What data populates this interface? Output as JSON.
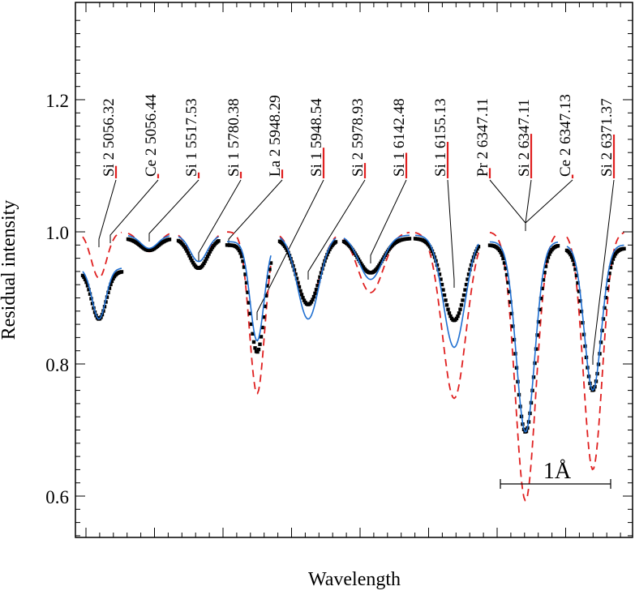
{
  "chart_data": {
    "type": "line",
    "title": "",
    "xlabel": "Wavelength",
    "ylabel": "Residual intensity",
    "ylim": [
      0.53,
      1.35
    ],
    "yticks": [
      "0.6",
      "0.8",
      "1.0",
      "1.2"
    ],
    "grid": false,
    "scale_bar_label": "1Å",
    "legend": [],
    "colors": {
      "observed": "#000000",
      "model_solid": "#1f6fd1",
      "model_dashed": "#e02020",
      "marker": "#e02020"
    },
    "line_ids": [
      {
        "ion": "Si 2",
        "wavelength": "5056.32",
        "strength": 0.17
      },
      {
        "ion": "Ce 2",
        "wavelength": "5056.44",
        "strength": 0.06
      },
      {
        "ion": "Si 1",
        "wavelength": "5517.53",
        "strength": 0.08
      },
      {
        "ion": "Si 1",
        "wavelength": "5780.38",
        "strength": 0.09
      },
      {
        "ion": "La 2",
        "wavelength": "5948.29",
        "strength": 0.12
      },
      {
        "ion": "Si 1",
        "wavelength": "5948.54",
        "strength": 0.42
      },
      {
        "ion": "Si 2",
        "wavelength": "5978.93",
        "strength": 0.21
      },
      {
        "ion": "Si 1",
        "wavelength": "6142.48",
        "strength": 0.35
      },
      {
        "ion": "Si 1",
        "wavelength": "6155.13",
        "strength": 0.5
      },
      {
        "ion": "Pr 2",
        "wavelength": "6347.11",
        "strength": 0.14
      },
      {
        "ion": "Si 2",
        "wavelength": "6347.11",
        "strength": 0.61
      },
      {
        "ion": "Ce 2",
        "wavelength": "6347.13",
        "strength": 0.05
      },
      {
        "ion": "Si 2",
        "wavelength": "6371.37",
        "strength": 0.6
      }
    ],
    "segments": [
      {
        "id": 1,
        "observed_min": 0.868,
        "model_solid_min": 0.868,
        "model_dashed_min": 0.93
      },
      {
        "id": 2,
        "observed_min": 0.972,
        "model_solid_min": 0.975,
        "model_dashed_min": 0.97
      },
      {
        "id": 3,
        "observed_min": 0.945,
        "model_solid_min": 0.955,
        "model_dashed_min": 0.945
      },
      {
        "id": 4,
        "observed_min": 0.818,
        "model_solid_min": 0.835,
        "model_dashed_min": 0.755
      },
      {
        "id": 5,
        "observed_min": 0.89,
        "model_solid_min": 0.868,
        "model_dashed_min": 0.89
      },
      {
        "id": 6,
        "observed_min": 0.938,
        "model_solid_min": 0.928,
        "model_dashed_min": 0.908
      },
      {
        "id": 7,
        "observed_min": 0.866,
        "model_solid_min": 0.825,
        "model_dashed_min": 0.748
      },
      {
        "id": 8,
        "observed_min": 0.697,
        "model_solid_min": 0.697,
        "model_dashed_min": 0.593
      },
      {
        "id": 9,
        "observed_min": 0.76,
        "model_solid_min": 0.76,
        "model_dashed_min": 0.64
      }
    ]
  }
}
